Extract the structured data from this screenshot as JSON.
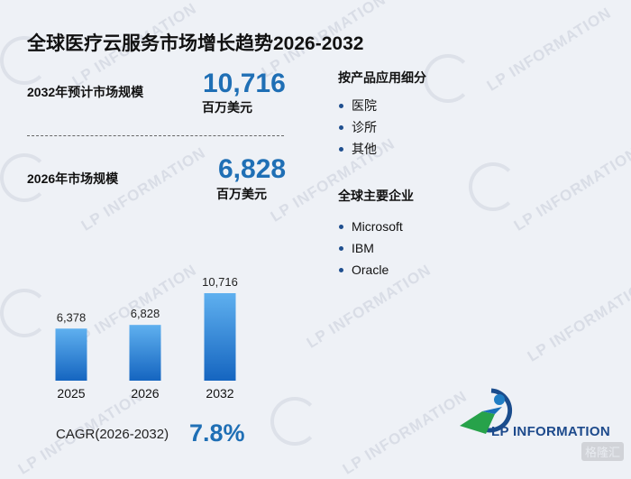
{
  "title": "全球医疗云服务市场增长趋势2026-2032",
  "forecast": {
    "label": "2032年预计市场规模",
    "value": "10,716",
    "unit": "百万美元"
  },
  "current": {
    "label": "2026年市场规模",
    "value": "6,828",
    "unit": "百万美元"
  },
  "segment": {
    "title": "按产品应用细分",
    "items": [
      "医院",
      "诊所",
      "其他"
    ]
  },
  "companies": {
    "title": "全球主要企业",
    "items": [
      "Microsoft",
      "IBM",
      "Oracle"
    ]
  },
  "cagr": {
    "label": "CAGR(2026-2032)",
    "value": "7.8%"
  },
  "brand": {
    "name": "LP INFORMATION",
    "watermark": "LP INFORMATION",
    "corner": "格隆汇"
  },
  "colors": {
    "accent": "#1f6fb5",
    "bar_top": "#5fb0ef",
    "bar_bottom": "#1565c0"
  },
  "chart_data": {
    "type": "bar",
    "categories": [
      "2025",
      "2026",
      "2032"
    ],
    "values": [
      6378,
      6828,
      10716
    ],
    "data_labels": [
      "6,378",
      "6,828",
      "10,716"
    ],
    "title": "",
    "xlabel": "",
    "ylabel": "",
    "ylim": [
      0,
      10716
    ],
    "grid": false,
    "legend": "none"
  }
}
